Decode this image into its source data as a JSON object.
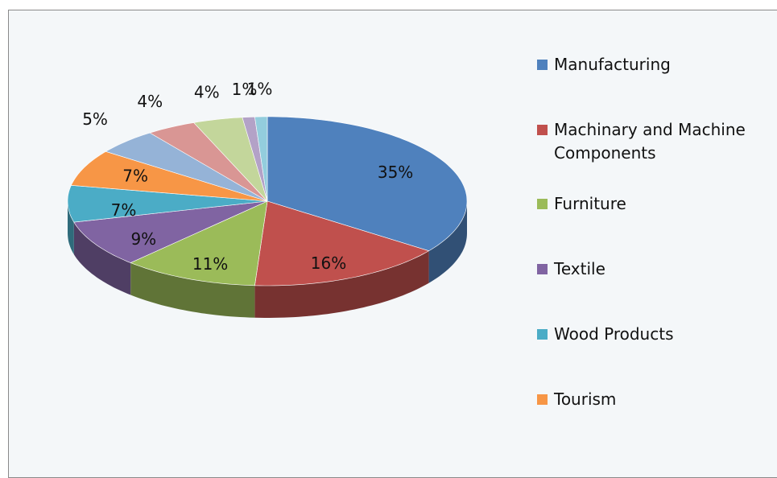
{
  "chart_data": {
    "type": "pie",
    "categories": [
      "Manufacturing",
      "Machinary and Machine Components",
      "Furniture",
      "Textile",
      "Wood Products",
      "Tourism",
      null,
      null,
      null,
      null,
      null
    ],
    "values": [
      35,
      16,
      11,
      9,
      7,
      7,
      5,
      4,
      4,
      1,
      1
    ],
    "value_labels": [
      "35%",
      "16%",
      "11%",
      "9%",
      "7%",
      "7%",
      "5%",
      "4%",
      "4%",
      "1%",
      "1%"
    ],
    "colors": [
      "#4f81bd",
      "#c0504d",
      "#9bbb59",
      "#8064a2",
      "#4bacc6",
      "#f79646",
      "#95b3d7",
      "#d99694",
      "#c3d69b",
      "#b3a2c7",
      "#93cddd"
    ],
    "legend": "right"
  }
}
